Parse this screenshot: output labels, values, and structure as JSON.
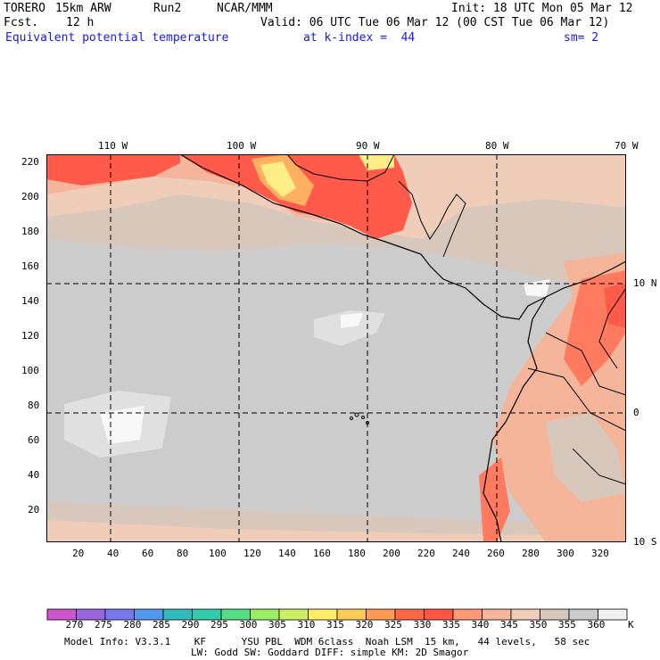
{
  "header": {
    "model": "TORERO",
    "resolution": "15km ARW",
    "run": "Run2",
    "org": "NCAR/MMM",
    "init": "Init: 18 UTC Mon 05 Mar 12",
    "fcst_label": "Fcst.",
    "fcst_value": "12 h",
    "valid": "Valid: 06 UTC Tue 06 Mar 12 (00 CST Tue 06 Mar 12)",
    "field": "Equivalent potential temperature",
    "level": "at k-index =  44",
    "smooth": "sm= 2"
  },
  "map": {
    "top_lon_labels": [
      "110 W",
      "100 W",
      "90 W",
      "80 W",
      "70 W"
    ],
    "right_lat_labels": [
      "10 N",
      "0",
      "10 S"
    ],
    "y_ticks": [
      "220",
      "200",
      "180",
      "160",
      "140",
      "120",
      "100",
      "80",
      "60",
      "40",
      "20"
    ],
    "x_ticks": [
      "20",
      "40",
      "60",
      "80",
      "100",
      "120",
      "140",
      "160",
      "180",
      "200",
      "220",
      "240",
      "260",
      "280",
      "300",
      "320"
    ],
    "colors": {
      "hot1": "#ff5a4a",
      "hot2": "#ff7a5e",
      "warm": "#f5b59a",
      "tan": "#f0cdb8",
      "beige": "#d8c8bc",
      "gray": "#cccccc",
      "light": "#e0e0e0",
      "white": "#f8f8f8",
      "yellow": "#ffee88",
      "orange": "#ffb060"
    }
  },
  "colorbar": {
    "labels": [
      "270",
      "275",
      "280",
      "285",
      "290",
      "295",
      "300",
      "305",
      "310",
      "315",
      "320",
      "325",
      "330",
      "335",
      "340",
      "345",
      "350",
      "355",
      "360"
    ],
    "unit": "K",
    "colors": [
      "#cc55cc",
      "#9966dd",
      "#7777ee",
      "#5599ee",
      "#33bbbb",
      "#33ccaa",
      "#55dd88",
      "#99ee66",
      "#ccee66",
      "#ffee66",
      "#ffcc55",
      "#ff9955",
      "#ff6644",
      "#ff5544",
      "#ff9977",
      "#f5b59a",
      "#f0cdb8",
      "#d8c8bc",
      "#cccccc",
      "#f0f0f0"
    ]
  },
  "footer": {
    "line1": "Model Info: V3.3.1    KF      YSU PBL  WDM 6class  Noah LSM  15 km,   44 levels,   58 sec",
    "line2": "LW: Godd SW: Goddard DIFF: simple KM: 2D Smagor"
  }
}
